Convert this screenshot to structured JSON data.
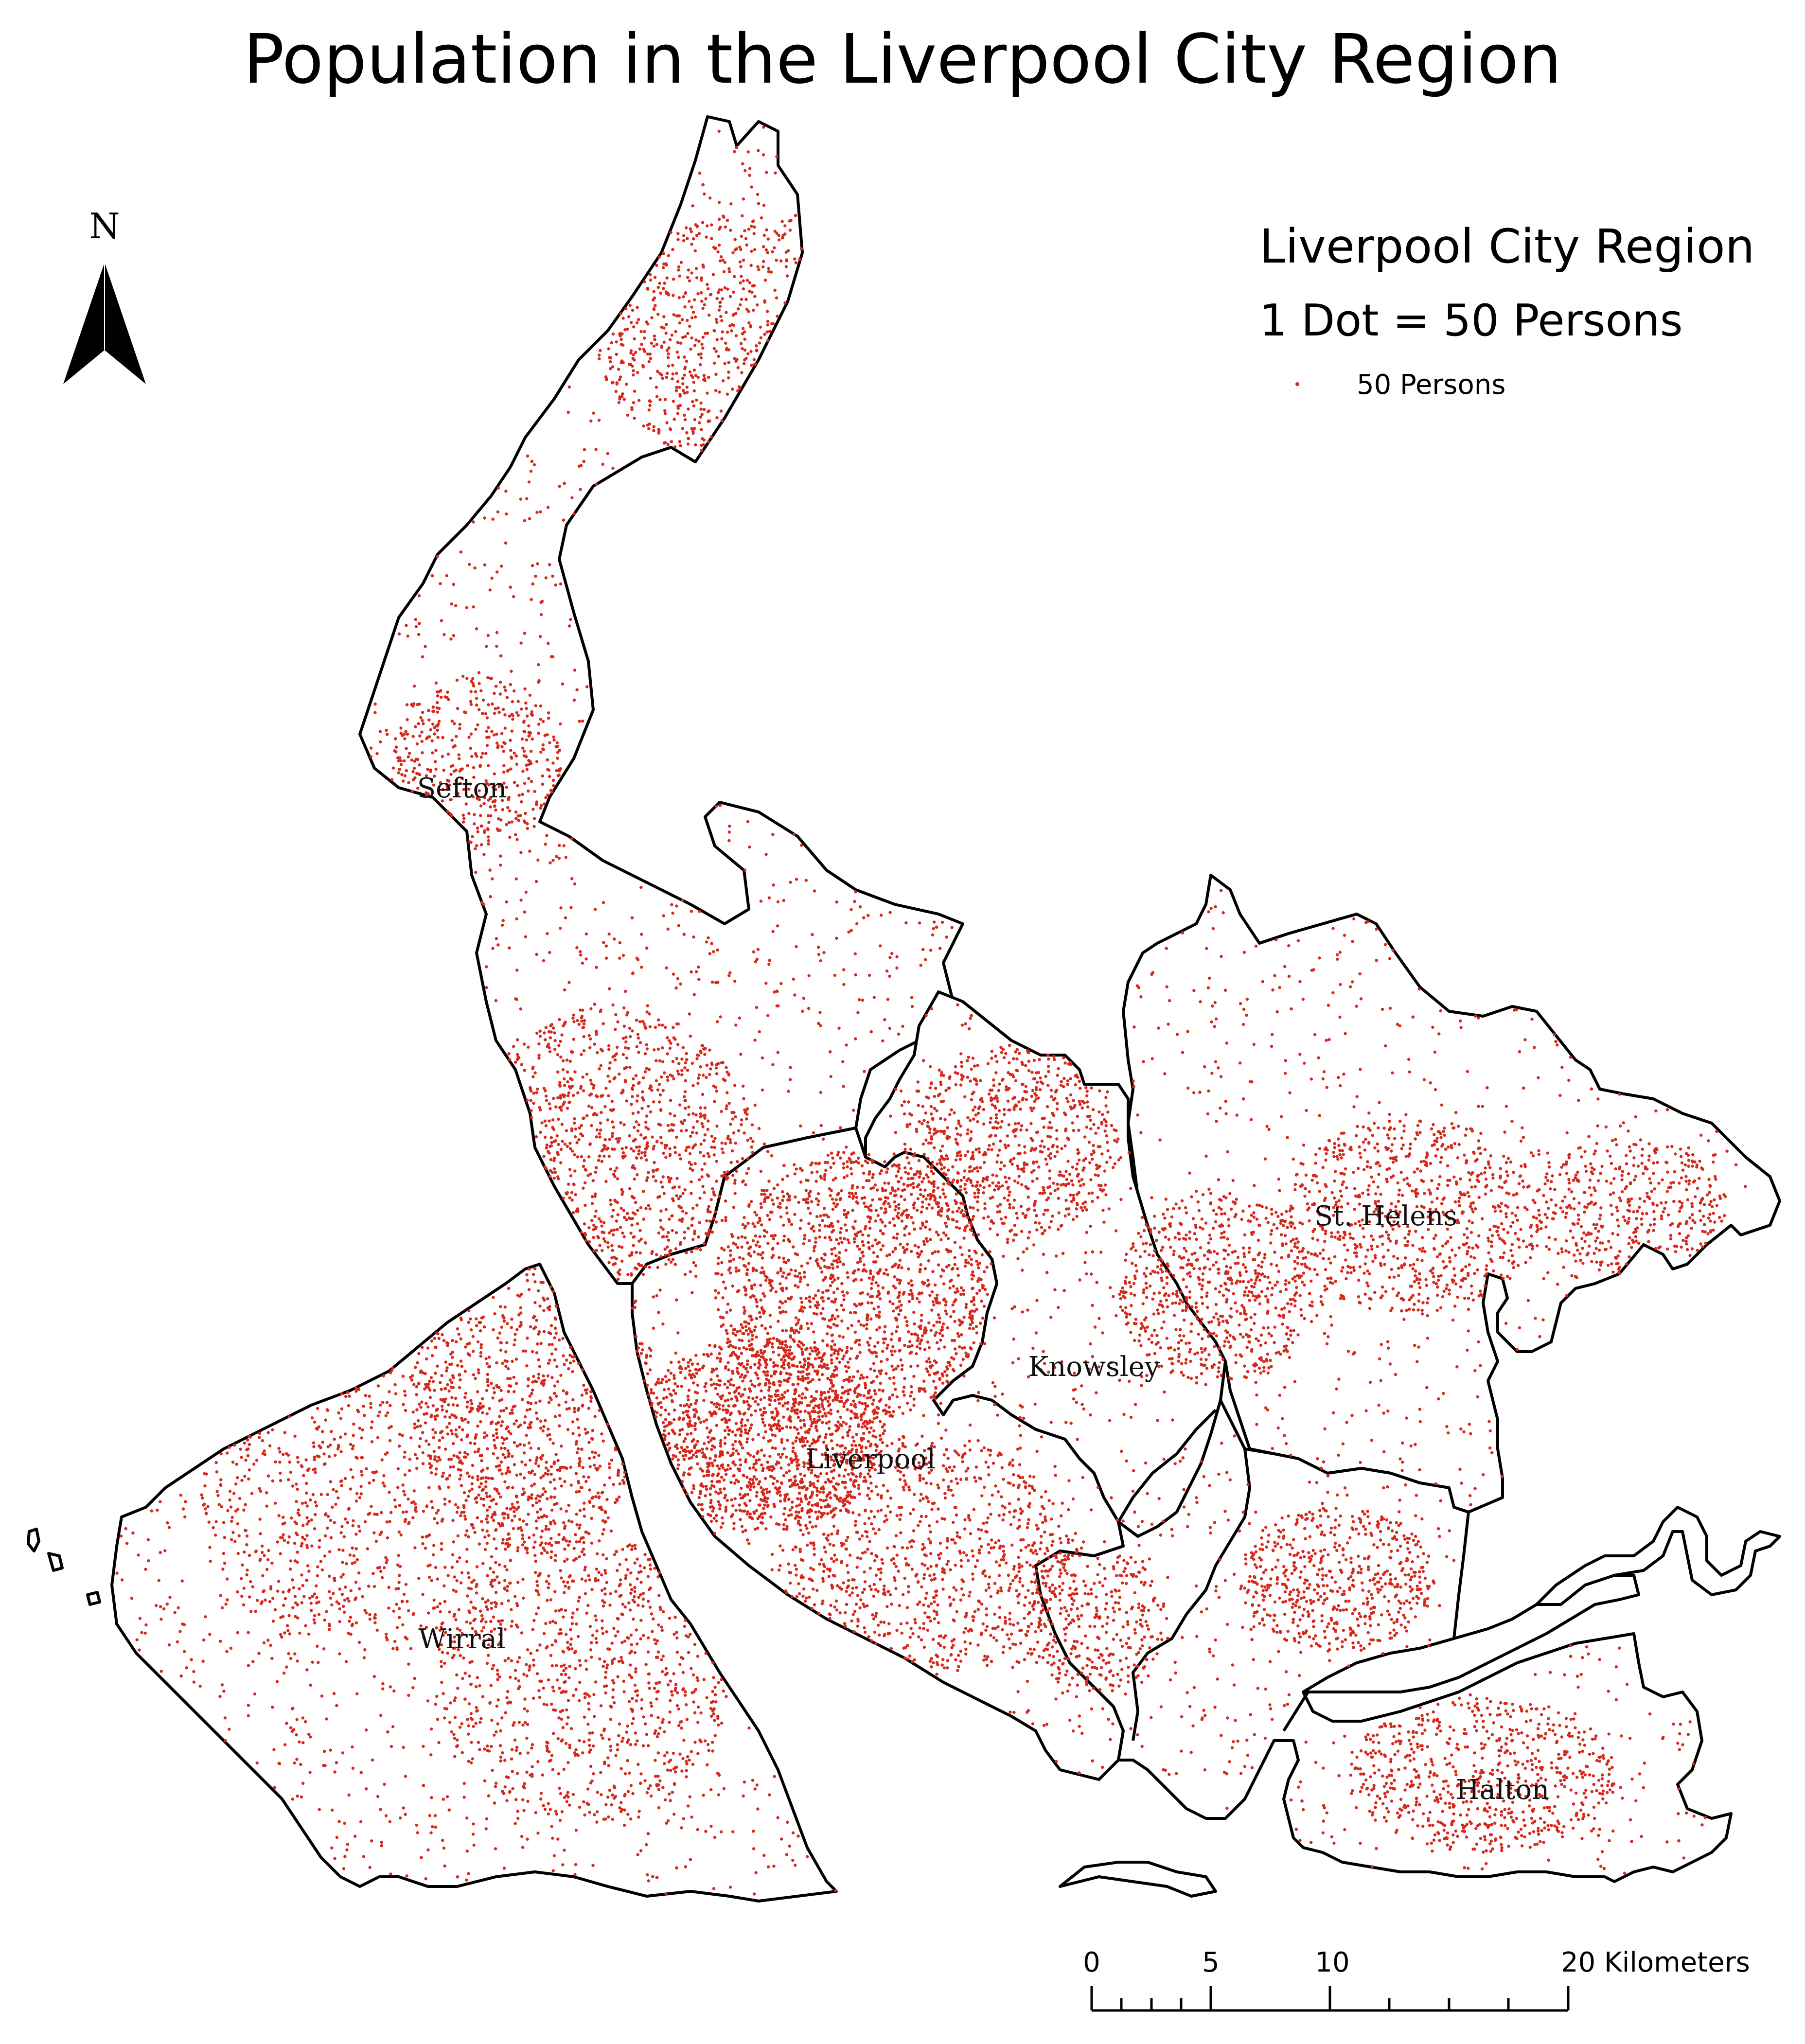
{
  "title": "Population in the Liverpool City Region",
  "legend": {
    "heading": "Liverpool City Region",
    "ratio": "1 Dot = 50 Persons",
    "item_label": "50 Persons",
    "dot_color": "#d42a1e"
  },
  "north_arrow": {
    "label": "N",
    "icon": "north-arrow-icon"
  },
  "scale_bar": {
    "ticks": [
      "0",
      "5",
      "10",
      "20 Kilometers"
    ]
  },
  "regions": [
    {
      "name": "Sefton"
    },
    {
      "name": "St. Helens"
    },
    {
      "name": "Knowsley"
    },
    {
      "name": "Liverpool"
    },
    {
      "name": "Wirral"
    },
    {
      "name": "Halton"
    }
  ],
  "colors": {
    "dot": "#d42a1e",
    "boundary": "#000000",
    "background": "#ffffff"
  }
}
